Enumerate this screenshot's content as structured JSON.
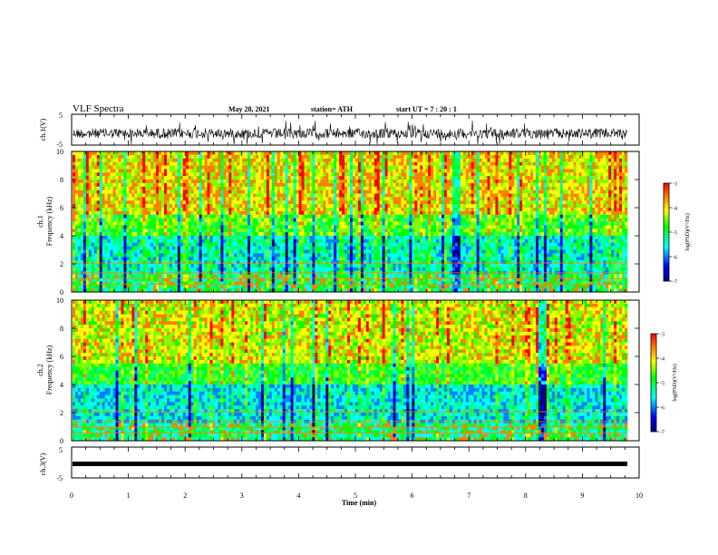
{
  "header": {
    "title": "VLF Spectra",
    "date": "May 28, 2021",
    "station": "station= ATH",
    "start": "start  UT  =   7 : 20 : 1"
  },
  "chart_data": [
    {
      "type": "line",
      "panel": "ch1-waveform",
      "ylabel": "ch.1(V)",
      "yticks": [
        "5",
        "-5"
      ],
      "ylim": [
        -5,
        5
      ],
      "xlim": [
        0,
        10
      ],
      "description_free": true
    },
    {
      "type": "heatmap",
      "panel": "ch1-spectrogram",
      "ylabel_top": "ch.1",
      "ylabel": "Frequency  (kHz)",
      "yticks": [
        "0",
        "2",
        "4",
        "6",
        "8",
        "10"
      ],
      "ylim": [
        0,
        10
      ],
      "xlim": [
        0,
        10
      ],
      "colorbar": {
        "label": "log(PSD)(V²/Hz)",
        "ticks": [
          "-3",
          "-4",
          "-5",
          "-6",
          "-7"
        ],
        "range": [
          -7,
          -3
        ]
      }
    },
    {
      "type": "heatmap",
      "panel": "ch2-spectrogram",
      "ylabel_top": "ch.2",
      "ylabel": "Frequency  (kHz)",
      "yticks": [
        "0",
        "2",
        "4",
        "6",
        "8",
        "10"
      ],
      "ylim": [
        0,
        10
      ],
      "xlim": [
        0,
        10
      ],
      "colorbar": {
        "label": "log(PSD)(V²/Hz)",
        "ticks": [
          "-3",
          "-4",
          "-5",
          "-6",
          "-7"
        ],
        "range": [
          -7,
          -3
        ]
      }
    },
    {
      "type": "line",
      "panel": "ch3-waveform",
      "ylabel": "ch.3(V)",
      "yticks": [
        "5",
        "-5"
      ],
      "ylim": [
        -5,
        5
      ],
      "xlim": [
        0,
        10
      ]
    }
  ],
  "xaxis": {
    "label": "Time  (min)",
    "ticks": [
      "0",
      "1",
      "2",
      "3",
      "4",
      "5",
      "6",
      "7",
      "8",
      "9",
      "10"
    ]
  },
  "colors": {
    "scale": [
      "#00007f",
      "#0000ff",
      "#00ffff",
      "#00ff00",
      "#ffff00",
      "#ff7f00",
      "#ff0000"
    ]
  }
}
